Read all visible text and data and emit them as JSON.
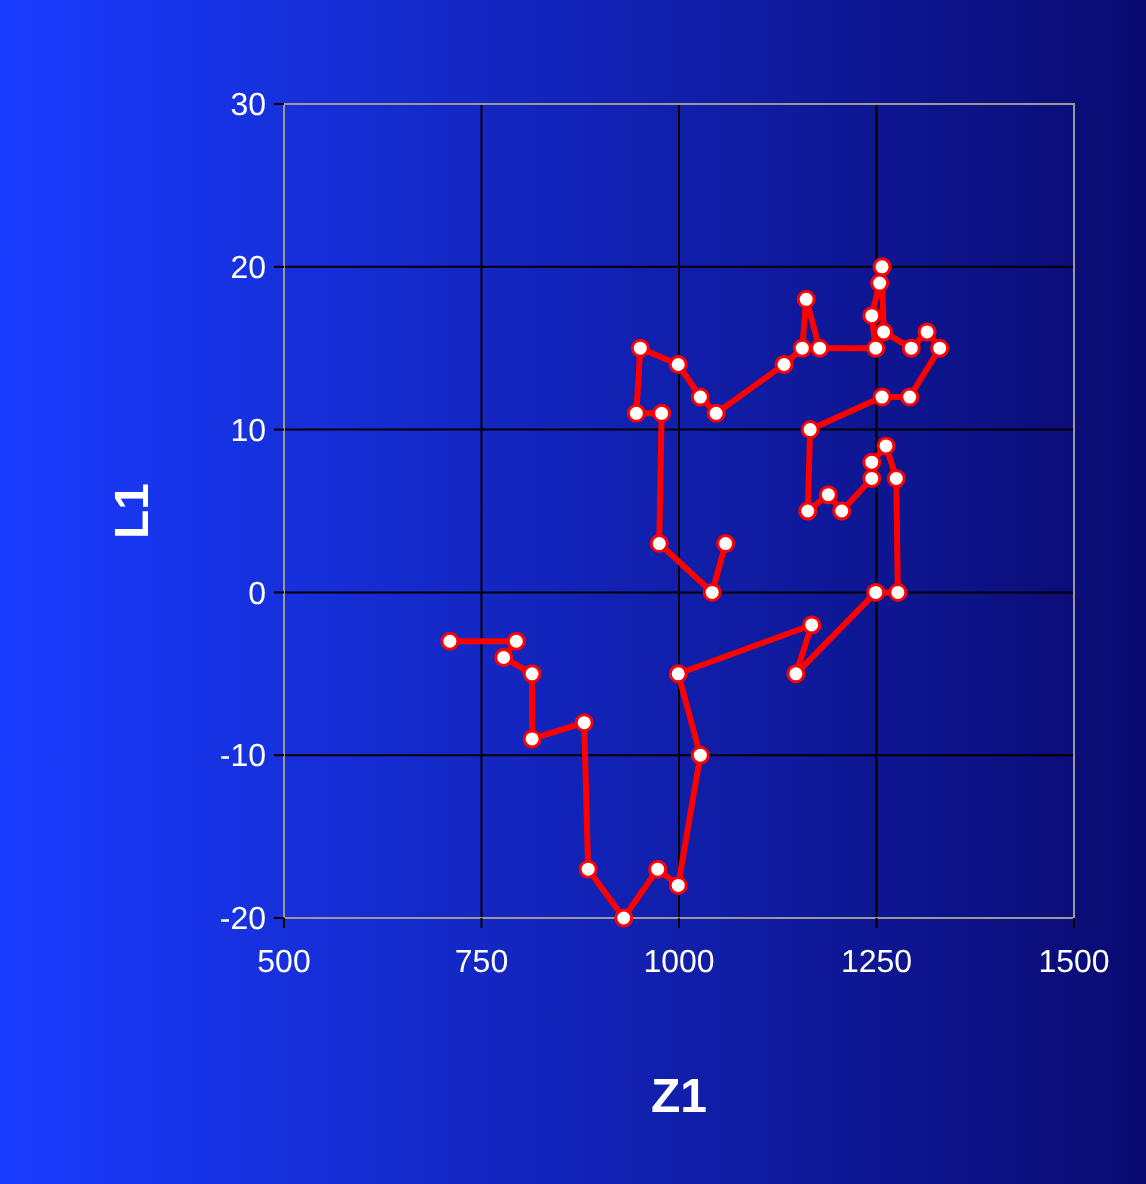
{
  "chart_data": {
    "type": "line",
    "xlabel": "Z1",
    "ylabel": "L1",
    "xlim": [
      500,
      1500
    ],
    "xticks": [
      500,
      750,
      1000,
      1250,
      1500
    ],
    "ylim": [
      -20,
      30
    ],
    "yticks": [
      -20,
      -10,
      0,
      10,
      20,
      30
    ],
    "grid": true,
    "marker": "circle",
    "line_style": "solid",
    "series": [
      {
        "color": "#ff0000",
        "x": [
          1059,
          1042,
          975,
          978,
          946,
          951,
          999,
          1027,
          1047,
          1133,
          1156,
          1161,
          1178,
          1249,
          1244,
          1254,
          1257,
          1259,
          1294,
          1314,
          1330,
          1292,
          1257,
          1166,
          1163,
          1189,
          1206,
          1244,
          1244,
          1262,
          1275,
          1277,
          1249,
          1148,
          1168,
          999,
          1027,
          999,
          973,
          930,
          885,
          880,
          814,
          814,
          778,
          794,
          710
        ],
        "values": [
          3,
          0,
          3,
          11,
          11,
          15,
          14,
          12,
          11,
          14,
          15,
          18,
          15,
          15,
          17,
          19,
          20,
          16,
          15,
          16,
          15,
          12,
          12,
          10,
          5,
          6,
          5,
          7,
          8,
          9,
          7,
          0,
          0,
          -5,
          -2,
          -5,
          -10,
          -18,
          -17,
          -20,
          -17,
          -8,
          -9,
          -5,
          -4,
          -3,
          -3
        ]
      }
    ]
  }
}
